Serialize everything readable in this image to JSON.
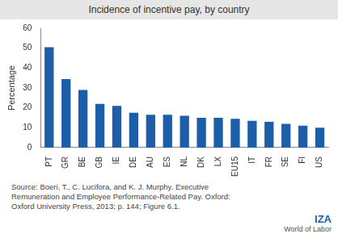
{
  "chart_data": {
    "type": "bar",
    "title": "Incidence of incentive pay, by country",
    "ylabel": "Percentage",
    "categories": [
      "PT",
      "GR",
      "BE",
      "GB",
      "IE",
      "DE",
      "AU",
      "ES",
      "NL",
      "DK",
      "LX",
      "EU15",
      "IT",
      "FR",
      "SE",
      "FI",
      "US"
    ],
    "values": [
      50.5,
      34.5,
      29,
      22,
      21,
      17.5,
      16.5,
      16.5,
      16,
      15,
      15,
      14.5,
      13.5,
      13,
      12,
      11,
      10
    ],
    "color": "#1c5ea8",
    "ylim": [
      0,
      60
    ],
    "yticks": [
      0,
      10,
      20,
      30,
      40,
      50,
      60
    ],
    "grid": false,
    "source": "Source: Boeri, T., C. Lucifora, and K. J. Murphy. Executive Remuneration and Employee Performance-Related Pay. Oxford: Oxford University Press, 2013; p. 144; Figure 6.1.",
    "logo": [
      "IZA",
      "World of Labor"
    ]
  }
}
